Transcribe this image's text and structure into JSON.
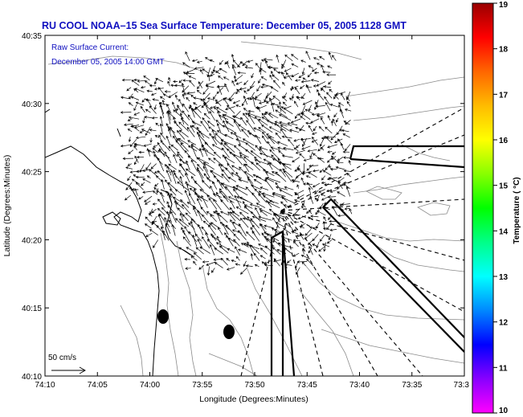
{
  "title": "RU COOL   NOAA–15  Sea Surface Temperature:  December 05, 2005 1128 GMT",
  "legend": {
    "line1": "Raw Surface Current:",
    "line2": "December 05, 2005 14:00 GMT"
  },
  "scale": {
    "label": "50 cm/s"
  },
  "axes": {
    "xlabel": "Longitude (Degrees:Minutes)",
    "ylabel": "Latitude (Degrees:Minutes)",
    "x_ticks": [
      "74:10",
      "74:05",
      "74:00",
      "73:55",
      "73:50",
      "73:45",
      "73:40",
      "73:35",
      "73:3"
    ],
    "y_ticks": [
      "40:35",
      "40:30",
      "40:25",
      "40:20",
      "40:15",
      "40:10"
    ]
  },
  "colorbar": {
    "label": "Temperature ( °C)",
    "ticks": [
      "19",
      "18",
      "17",
      "16",
      "15",
      "14",
      "13",
      "12",
      "11",
      "10"
    ],
    "range": [
      10,
      19
    ],
    "colors": [
      "#ff00ff",
      "#8800ff",
      "#0000ff",
      "#0088ff",
      "#00ffff",
      "#00ff88",
      "#00ff00",
      "#88ff00",
      "#ffff00",
      "#ffbb00",
      "#ff6600",
      "#ff0000",
      "#990000"
    ]
  },
  "colors": {
    "title": "#1010c0",
    "frame": "#000000"
  }
}
